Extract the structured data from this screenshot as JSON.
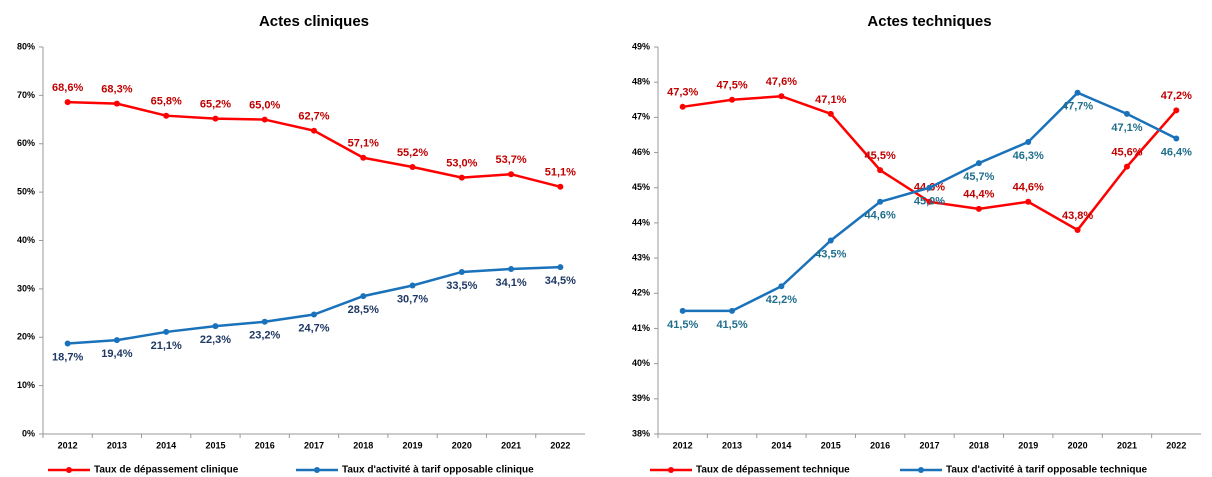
{
  "chart_data": [
    {
      "type": "line",
      "title": "Actes cliniques",
      "categories": [
        "2012",
        "2013",
        "2014",
        "2015",
        "2016",
        "2017",
        "2018",
        "2019",
        "2020",
        "2021",
        "2022"
      ],
      "ylim": [
        0,
        80
      ],
      "yticks": [
        {
          "value": 0,
          "label": "0%"
        },
        {
          "value": 10,
          "label": "10%"
        },
        {
          "value": 20,
          "label": "20%"
        },
        {
          "value": 30,
          "label": "30%"
        },
        {
          "value": 40,
          "label": "40%"
        },
        {
          "value": 50,
          "label": "50%"
        },
        {
          "value": 60,
          "label": "60%"
        },
        {
          "value": 70,
          "label": "70%"
        },
        {
          "value": 80,
          "label": "80%"
        }
      ],
      "grid": false,
      "legend": "bottom",
      "series": [
        {
          "name": "Taux de dépassement clinique",
          "color": "#ff0000",
          "label_color": "#c00000",
          "values": [
            68.6,
            68.3,
            65.8,
            65.2,
            65.0,
            62.7,
            57.1,
            55.2,
            53.0,
            53.7,
            51.1
          ],
          "value_labels": [
            "68,6%",
            "68,3%",
            "65,8%",
            "65,2%",
            "65,0%",
            "62,7%",
            "57,1%",
            "55,2%",
            "53,0%",
            "53,7%",
            "51,1%"
          ]
        },
        {
          "name": "Taux d'activité à tarif opposable clinique",
          "color": "#1a72bb",
          "label_color": "#1f3864",
          "values": [
            18.7,
            19.4,
            21.1,
            22.3,
            23.2,
            24.7,
            28.5,
            30.7,
            33.5,
            34.1,
            34.5
          ],
          "value_labels": [
            "18,7%",
            "19,4%",
            "21,1%",
            "22,3%",
            "23,2%",
            "24,7%",
            "28,5%",
            "30,7%",
            "33,5%",
            "34,1%",
            "34,5%"
          ]
        }
      ]
    },
    {
      "type": "line",
      "title": "Actes techniques",
      "categories": [
        "2012",
        "2013",
        "2014",
        "2015",
        "2016",
        "2017",
        "2018",
        "2019",
        "2020",
        "2021",
        "2022"
      ],
      "ylim": [
        38,
        49
      ],
      "yticks": [
        {
          "value": 38,
          "label": "38%"
        },
        {
          "value": 39,
          "label": "39%"
        },
        {
          "value": 40,
          "label": "40%"
        },
        {
          "value": 41,
          "label": "41%"
        },
        {
          "value": 42,
          "label": "42%"
        },
        {
          "value": 43,
          "label": "43%"
        },
        {
          "value": 44,
          "label": "44%"
        },
        {
          "value": 45,
          "label": "45%"
        },
        {
          "value": 46,
          "label": "46%"
        },
        {
          "value": 47,
          "label": "47%"
        },
        {
          "value": 48,
          "label": "48%"
        },
        {
          "value": 49,
          "label": "49%"
        }
      ],
      "grid": false,
      "legend": "bottom",
      "series": [
        {
          "name": "Taux de dépassement technique",
          "color": "#ff0000",
          "label_color": "#c00000",
          "values": [
            47.3,
            47.5,
            47.6,
            47.1,
            45.5,
            44.6,
            44.4,
            44.6,
            43.8,
            45.6,
            47.2
          ],
          "value_labels": [
            "47,3%",
            "47,5%",
            "47,6%",
            "47,1%",
            "45,5%",
            "44,6%",
            "44,4%",
            "44,6%",
            "43,8%",
            "45,6%",
            "47,2%"
          ]
        },
        {
          "name": "Taux d'activité à tarif opposable technique",
          "color": "#1a72bb",
          "label_color": "#1f6e8c",
          "values": [
            41.5,
            41.5,
            42.2,
            43.5,
            44.6,
            45.0,
            45.7,
            46.3,
            47.7,
            47.1,
            46.4
          ],
          "value_labels": [
            "41,5%",
            "41,5%",
            "42,2%",
            "43,5%",
            "44,6%",
            "45,0%",
            "45,7%",
            "46,3%",
            "47,7%",
            "47,1%",
            "46,4%"
          ]
        }
      ]
    }
  ]
}
